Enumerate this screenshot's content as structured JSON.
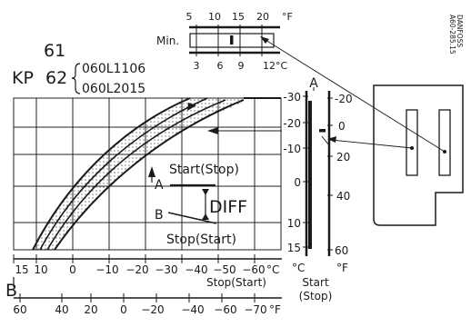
{
  "watermark": [
    "DANFOSS",
    "A60-285.15"
  ],
  "model": {
    "number_1": "61",
    "prefix": "KP",
    "number_2": "62",
    "codes": [
      "060L1106",
      "060L2015"
    ]
  },
  "top_scale": {
    "min_label": "Min.",
    "f_ticks": [
      "5",
      "10",
      "15",
      "20"
    ],
    "f_unit": "°F",
    "c_ticks": [
      "3",
      "6",
      "9",
      "12°C"
    ]
  },
  "chart_box": {
    "a_label": "A"
  },
  "vertical_scale": {
    "c_ticks": [
      "-30",
      "-20",
      "-10",
      "0",
      "10",
      "15"
    ],
    "f_ticks": [
      "-20",
      "0",
      "20",
      "40",
      "60"
    ],
    "c_unit": "°C",
    "f_unit": "°F",
    "caption": [
      "Start",
      "(Stop)"
    ]
  },
  "annotations": {
    "start_stop": "Start(Stop)",
    "a": "A",
    "diff": "DIFF",
    "b": "B",
    "stop_start": "Stop(Start)"
  },
  "x_axis_c": {
    "ticks": [
      "15",
      "10",
      "0",
      "−10",
      "−20",
      "−30",
      "−40",
      "−50",
      "−60"
    ],
    "unit": "°C",
    "caption": "Stop(Start)"
  },
  "b_label": "B",
  "x_axis_f": {
    "ticks": [
      "60",
      "40",
      "20",
      "0",
      "−20",
      "−40",
      "−60",
      "−70"
    ],
    "unit": "°F"
  }
}
